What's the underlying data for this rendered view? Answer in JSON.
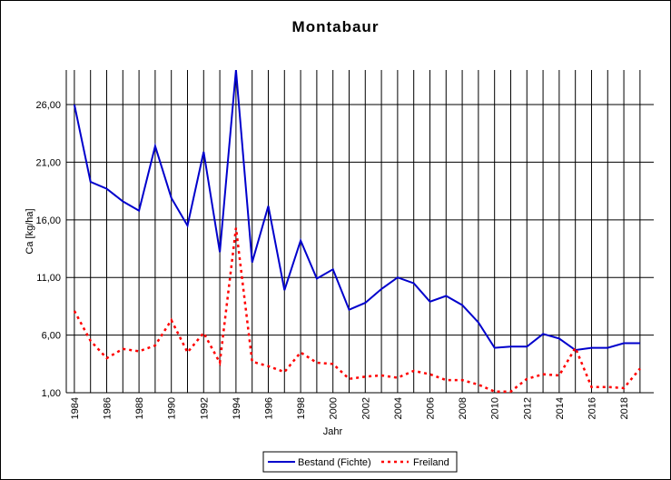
{
  "chart_data": {
    "type": "line",
    "title": "Montabaur",
    "xlabel": "Jahr",
    "ylabel": "Ca [kg/ha]",
    "ylim": [
      1,
      29
    ],
    "yticks": [
      "1,00",
      "6,00",
      "11,00",
      "16,00",
      "21,00",
      "26,00"
    ],
    "ytick_values": [
      1,
      6,
      11,
      16,
      21,
      26
    ],
    "xticks": [
      "1984",
      "1986",
      "1988",
      "1990",
      "1992",
      "1994",
      "1996",
      "1998",
      "2000",
      "2002",
      "2004",
      "2006",
      "2008",
      "2010",
      "2012",
      "2014",
      "2016",
      "2018"
    ],
    "x": [
      1984,
      1985,
      1986,
      1987,
      1988,
      1989,
      1990,
      1991,
      1992,
      1993,
      1994,
      1995,
      1996,
      1997,
      1998,
      1999,
      2000,
      2001,
      2002,
      2003,
      2004,
      2005,
      2006,
      2007,
      2008,
      2009,
      2010,
      2011,
      2012,
      2013,
      2014,
      2015,
      2016,
      2017,
      2018,
      2019
    ],
    "grid": true,
    "legend_position": "bottom",
    "series": [
      {
        "name": "Bestand (Fichte)",
        "color": "#0000cc",
        "style": "solid",
        "values": [
          26.0,
          19.3,
          18.7,
          17.6,
          16.8,
          22.4,
          17.9,
          15.5,
          21.9,
          13.2,
          29.0,
          12.3,
          17.2,
          9.9,
          14.2,
          10.9,
          11.7,
          8.2,
          8.8,
          10.0,
          11.0,
          10.5,
          8.9,
          9.4,
          8.6,
          7.1,
          4.9,
          5.0,
          5.0,
          6.1,
          5.7,
          4.7,
          4.9,
          4.9,
          5.3,
          5.3
        ],
        "values_note": "1994 peak exceeds the upper axis bound and is clipped at the plot top"
      },
      {
        "name": "Freiland",
        "color": "#ff0000",
        "style": "dashed",
        "values": [
          8.1,
          5.5,
          4.0,
          4.8,
          4.6,
          5.1,
          7.3,
          4.5,
          6.2,
          3.6,
          15.3,
          3.7,
          3.3,
          2.8,
          4.5,
          3.6,
          3.5,
          2.2,
          2.4,
          2.5,
          2.3,
          2.9,
          2.6,
          2.1,
          2.1,
          1.7,
          1.1,
          1.1,
          2.2,
          2.6,
          2.5,
          4.9,
          1.5,
          1.5,
          1.4,
          3.1
        ]
      }
    ]
  }
}
